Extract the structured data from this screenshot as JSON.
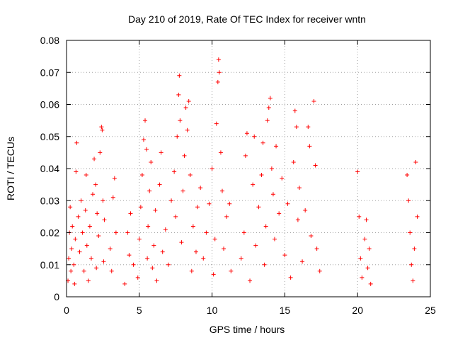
{
  "chart_data": {
    "type": "scatter",
    "title": "Day 210 of 2019, Rate Of TEC Index for receiver wntn",
    "xlabel": "GPS time / hours",
    "ylabel": "ROTI / TECUs",
    "xlim": [
      0,
      25
    ],
    "ylim": [
      0,
      0.08
    ],
    "xticks": [
      0,
      5,
      10,
      15,
      20,
      25
    ],
    "xtick_labels": [
      "0",
      "5",
      "10",
      "15",
      "20",
      "25"
    ],
    "yticks": [
      0,
      0.01,
      0.02,
      0.03,
      0.04,
      0.05,
      0.06,
      0.07,
      0.08
    ],
    "ytick_labels": [
      "0",
      "0.01",
      "0.02",
      "0.03",
      "0.04",
      "0.05",
      "0.06",
      "0.07",
      "0.08"
    ],
    "grid": true,
    "marker": "+",
    "color": "#ff0000",
    "series": [
      {
        "name": "ROTI",
        "points": [
          [
            0.1,
            0.005
          ],
          [
            0.15,
            0.012
          ],
          [
            0.2,
            0.02
          ],
          [
            0.25,
            0.028
          ],
          [
            0.3,
            0.008
          ],
          [
            0.35,
            0.015
          ],
          [
            0.4,
            0.022
          ],
          [
            0.5,
            0.01
          ],
          [
            0.55,
            0.004
          ],
          [
            0.6,
            0.018
          ],
          [
            0.65,
            0.039
          ],
          [
            0.7,
            0.048
          ],
          [
            0.8,
            0.025
          ],
          [
            0.9,
            0.014
          ],
          [
            1.0,
            0.03
          ],
          [
            1.1,
            0.02
          ],
          [
            1.2,
            0.008
          ],
          [
            1.3,
            0.027
          ],
          [
            1.35,
            0.038
          ],
          [
            1.4,
            0.016
          ],
          [
            1.5,
            0.005
          ],
          [
            1.6,
            0.022
          ],
          [
            1.7,
            0.012
          ],
          [
            1.8,
            0.032
          ],
          [
            1.9,
            0.043
          ],
          [
            2.0,
            0.035
          ],
          [
            2.05,
            0.009
          ],
          [
            2.1,
            0.026
          ],
          [
            2.2,
            0.019
          ],
          [
            2.3,
            0.045
          ],
          [
            2.4,
            0.053
          ],
          [
            2.45,
            0.052
          ],
          [
            2.5,
            0.03
          ],
          [
            2.55,
            0.011
          ],
          [
            2.6,
            0.024
          ],
          [
            3.0,
            0.015
          ],
          [
            3.1,
            0.008
          ],
          [
            3.2,
            0.031
          ],
          [
            3.3,
            0.037
          ],
          [
            3.4,
            0.02
          ],
          [
            4.0,
            0.004
          ],
          [
            4.2,
            0.02
          ],
          [
            4.3,
            0.013
          ],
          [
            4.4,
            0.026
          ],
          [
            4.6,
            0.01
          ],
          [
            4.9,
            0.006
          ],
          [
            5.0,
            0.018
          ],
          [
            5.1,
            0.028
          ],
          [
            5.2,
            0.038
          ],
          [
            5.3,
            0.049
          ],
          [
            5.4,
            0.055
          ],
          [
            5.5,
            0.046
          ],
          [
            5.55,
            0.012
          ],
          [
            5.6,
            0.022
          ],
          [
            5.7,
            0.033
          ],
          [
            5.8,
            0.042
          ],
          [
            5.9,
            0.009
          ],
          [
            6.0,
            0.016
          ],
          [
            6.1,
            0.027
          ],
          [
            6.2,
            0.005
          ],
          [
            6.4,
            0.035
          ],
          [
            6.5,
            0.045
          ],
          [
            6.6,
            0.014
          ],
          [
            6.8,
            0.021
          ],
          [
            7.0,
            0.01
          ],
          [
            7.2,
            0.03
          ],
          [
            7.4,
            0.039
          ],
          [
            7.5,
            0.025
          ],
          [
            7.6,
            0.05
          ],
          [
            7.7,
            0.063
          ],
          [
            7.75,
            0.069
          ],
          [
            7.8,
            0.055
          ],
          [
            7.9,
            0.017
          ],
          [
            8.0,
            0.033
          ],
          [
            8.1,
            0.044
          ],
          [
            8.2,
            0.059
          ],
          [
            8.3,
            0.052
          ],
          [
            8.4,
            0.061
          ],
          [
            8.5,
            0.038
          ],
          [
            8.6,
            0.008
          ],
          [
            8.7,
            0.022
          ],
          [
            8.9,
            0.014
          ],
          [
            9.0,
            0.028
          ],
          [
            9.2,
            0.034
          ],
          [
            9.4,
            0.012
          ],
          [
            9.6,
            0.02
          ],
          [
            9.8,
            0.029
          ],
          [
            10.0,
            0.04
          ],
          [
            10.1,
            0.007
          ],
          [
            10.2,
            0.018
          ],
          [
            10.3,
            0.054
          ],
          [
            10.4,
            0.067
          ],
          [
            10.45,
            0.074
          ],
          [
            10.5,
            0.07
          ],
          [
            10.6,
            0.045
          ],
          [
            10.7,
            0.033
          ],
          [
            10.8,
            0.015
          ],
          [
            11.0,
            0.025
          ],
          [
            11.2,
            0.029
          ],
          [
            11.3,
            0.008
          ],
          [
            12.0,
            0.012
          ],
          [
            12.2,
            0.02
          ],
          [
            12.3,
            0.044
          ],
          [
            12.4,
            0.051
          ],
          [
            12.6,
            0.005
          ],
          [
            12.8,
            0.035
          ],
          [
            12.9,
            0.05
          ],
          [
            13.0,
            0.016
          ],
          [
            13.2,
            0.028
          ],
          [
            13.4,
            0.038
          ],
          [
            13.5,
            0.048
          ],
          [
            13.6,
            0.01
          ],
          [
            13.7,
            0.022
          ],
          [
            13.8,
            0.055
          ],
          [
            13.9,
            0.059
          ],
          [
            14.0,
            0.062
          ],
          [
            14.1,
            0.04
          ],
          [
            14.2,
            0.032
          ],
          [
            14.3,
            0.018
          ],
          [
            14.4,
            0.047
          ],
          [
            14.6,
            0.026
          ],
          [
            14.8,
            0.037
          ],
          [
            15.0,
            0.013
          ],
          [
            15.2,
            0.029
          ],
          [
            15.4,
            0.006
          ],
          [
            15.6,
            0.042
          ],
          [
            15.7,
            0.058
          ],
          [
            15.8,
            0.053
          ],
          [
            15.9,
            0.024
          ],
          [
            16.0,
            0.034
          ],
          [
            16.2,
            0.011
          ],
          [
            16.4,
            0.027
          ],
          [
            16.6,
            0.053
          ],
          [
            16.7,
            0.047
          ],
          [
            16.8,
            0.019
          ],
          [
            17.0,
            0.061
          ],
          [
            17.1,
            0.041
          ],
          [
            17.2,
            0.015
          ],
          [
            17.4,
            0.008
          ],
          [
            20.0,
            0.039
          ],
          [
            20.1,
            0.025
          ],
          [
            20.2,
            0.012
          ],
          [
            20.3,
            0.006
          ],
          [
            20.5,
            0.018
          ],
          [
            20.6,
            0.024
          ],
          [
            20.7,
            0.009
          ],
          [
            20.8,
            0.015
          ],
          [
            20.9,
            0.004
          ],
          [
            23.4,
            0.038
          ],
          [
            23.5,
            0.03
          ],
          [
            23.6,
            0.02
          ],
          [
            23.7,
            0.01
          ],
          [
            23.8,
            0.005
          ],
          [
            23.9,
            0.015
          ],
          [
            24.0,
            0.042
          ],
          [
            24.1,
            0.025
          ]
        ]
      }
    ]
  }
}
